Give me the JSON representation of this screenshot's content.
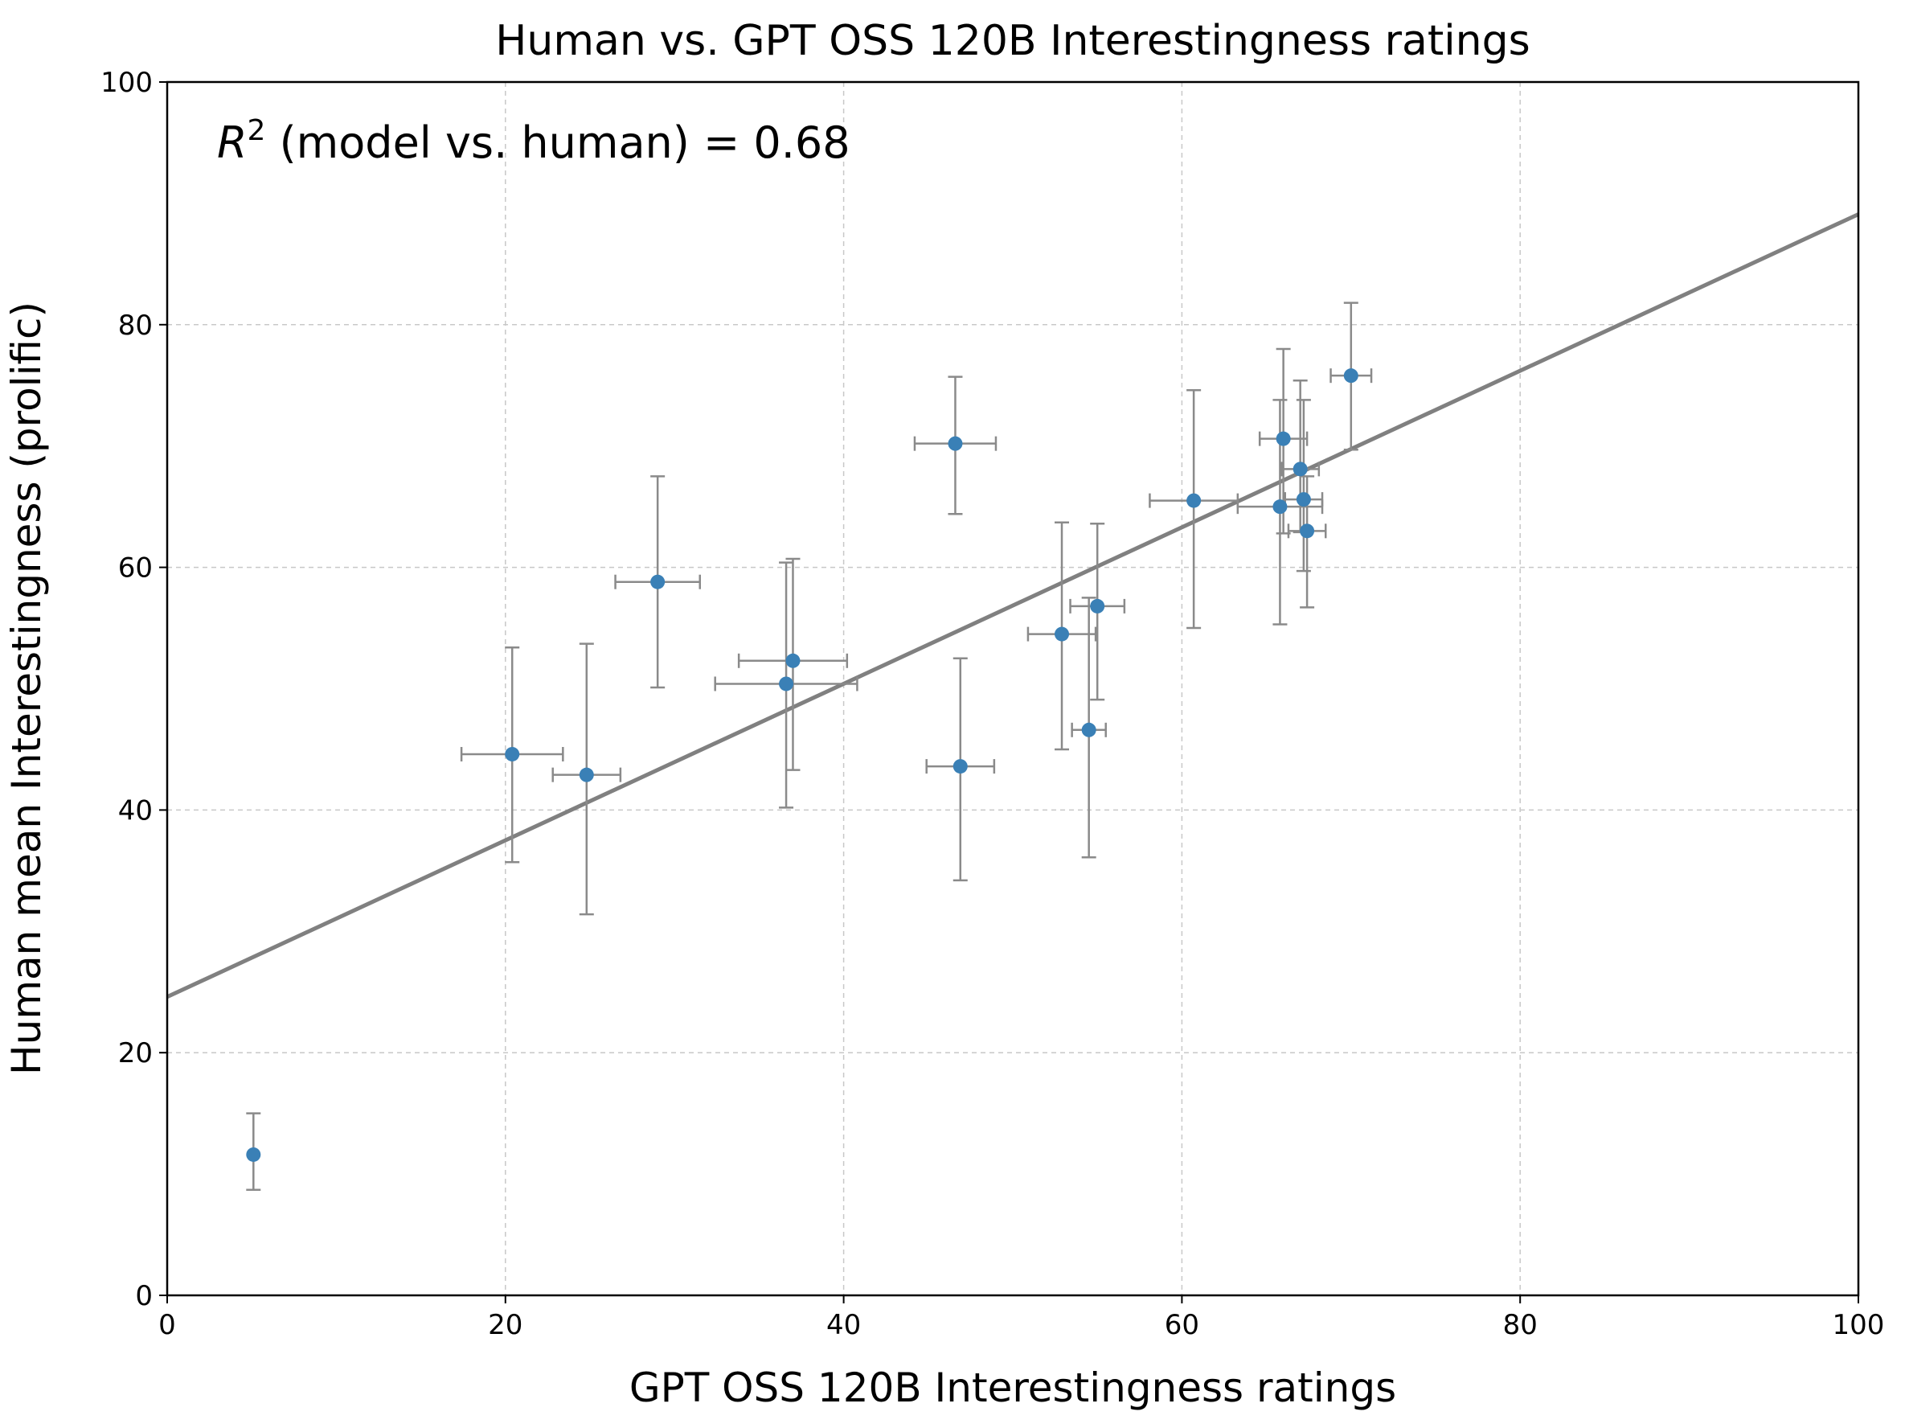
{
  "chart_data": {
    "type": "scatter",
    "title": "Human vs. GPT OSS 120B Interestingness ratings",
    "xlabel": "GPT OSS 120B Interestingness ratings",
    "ylabel": "Human mean Interestingness (prolific)",
    "xlim": [
      0,
      100
    ],
    "ylim": [
      0,
      100
    ],
    "xticks": [
      "0",
      "20",
      "40",
      "60",
      "80",
      "100"
    ],
    "yticks": [
      "0",
      "20",
      "40",
      "60",
      "80",
      "100"
    ],
    "grid": true,
    "annotation": {
      "r_symbol": "R",
      "r_exponent": "2",
      "text": " (model vs. human) = 0.68"
    },
    "fit_line": {
      "intercept": 24.6,
      "slope": 0.645
    },
    "colors": {
      "points": "#3a80b6",
      "errorbars": "#8a8a8a",
      "fit": "#808080",
      "grid": "#c8c8c8"
    },
    "points": [
      {
        "x": 5.1,
        "y": 11.6,
        "xerr": 0,
        "ylo": 8.7,
        "yhi": 15.0
      },
      {
        "x": 20.4,
        "y": 44.6,
        "xerr": 3.0,
        "ylo": 35.7,
        "yhi": 53.4
      },
      {
        "x": 24.8,
        "y": 42.9,
        "xerr": 2.0,
        "ylo": 31.4,
        "yhi": 53.7
      },
      {
        "x": 29.0,
        "y": 58.8,
        "xerr": 2.5,
        "ylo": 50.1,
        "yhi": 67.5
      },
      {
        "x": 36.6,
        "y": 50.4,
        "xerr": 4.2,
        "ylo": 40.2,
        "yhi": 60.4
      },
      {
        "x": 37.0,
        "y": 52.3,
        "xerr": 3.2,
        "ylo": 43.3,
        "yhi": 60.7
      },
      {
        "x": 46.6,
        "y": 70.2,
        "xerr": 2.4,
        "ylo": 64.4,
        "yhi": 75.7
      },
      {
        "x": 46.9,
        "y": 43.6,
        "xerr": 2.0,
        "ylo": 34.2,
        "yhi": 52.5
      },
      {
        "x": 52.9,
        "y": 54.5,
        "xerr": 2.0,
        "ylo": 45.0,
        "yhi": 63.7
      },
      {
        "x": 54.5,
        "y": 46.6,
        "xerr": 1.0,
        "ylo": 36.1,
        "yhi": 57.5
      },
      {
        "x": 55.0,
        "y": 56.8,
        "xerr": 1.6,
        "ylo": 49.1,
        "yhi": 63.6
      },
      {
        "x": 60.7,
        "y": 65.5,
        "xerr": 2.6,
        "ylo": 55.0,
        "yhi": 74.6
      },
      {
        "x": 65.8,
        "y": 65.0,
        "xerr": 2.5,
        "ylo": 55.3,
        "yhi": 73.8
      },
      {
        "x": 66.0,
        "y": 70.6,
        "xerr": 1.4,
        "ylo": 62.8,
        "yhi": 78.0
      },
      {
        "x": 67.0,
        "y": 68.1,
        "xerr": 1.1,
        "ylo": 62.9,
        "yhi": 75.4
      },
      {
        "x": 67.2,
        "y": 65.6,
        "xerr": 1.1,
        "ylo": 59.7,
        "yhi": 73.8
      },
      {
        "x": 67.4,
        "y": 63.0,
        "xerr": 1.1,
        "ylo": 56.7,
        "yhi": 67.5
      },
      {
        "x": 70.0,
        "y": 75.8,
        "xerr": 1.2,
        "ylo": 69.7,
        "yhi": 81.8
      }
    ]
  }
}
